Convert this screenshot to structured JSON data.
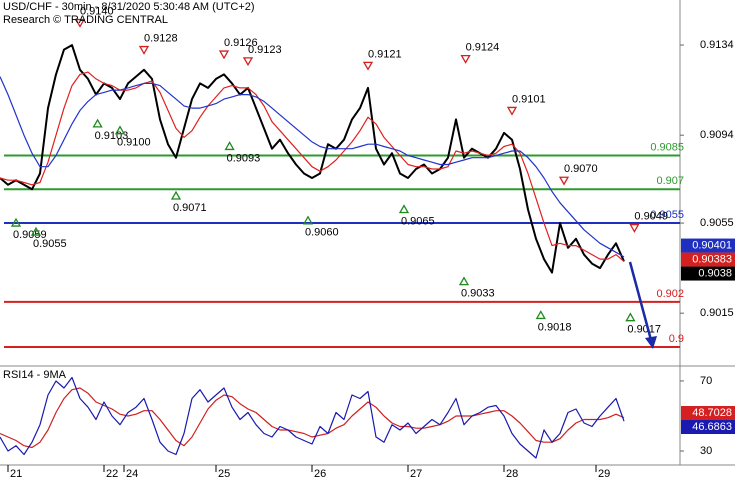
{
  "chart_data": [
    {
      "type": "line",
      "title": "USD/CHF - 30min - 8/31/2020 5:30:48 AM (UTC+2)",
      "subtitle": "Research © TRADING CENTRAL",
      "xlim": [
        0,
        85
      ],
      "ylim": [
        0.8992,
        0.9154
      ],
      "yticks": [
        0.9134,
        0.9094,
        0.9055,
        0.9015
      ],
      "series": [
        {
          "color": "#000000",
          "values": [
            0.9075,
            0.9072,
            0.9074,
            0.9072,
            0.907,
            0.9077,
            0.9106,
            0.9121,
            0.9132,
            0.9134,
            0.9123,
            0.9119,
            0.9112,
            0.9117,
            0.9115,
            0.911,
            0.9117,
            0.912,
            0.9123,
            0.9119,
            0.9101,
            0.909,
            0.9084,
            0.9097,
            0.911,
            0.9117,
            0.9115,
            0.9119,
            0.9121,
            0.9117,
            0.9112,
            0.9115,
            0.9106,
            0.9097,
            0.9088,
            0.9092,
            0.9086,
            0.9081,
            0.9077,
            0.9075,
            0.9077,
            0.909,
            0.9088,
            0.9092,
            0.9101,
            0.9106,
            0.9115,
            0.9088,
            0.9081,
            0.9086,
            0.9077,
            0.9075,
            0.9079,
            0.9081,
            0.9077,
            0.9079,
            0.9084,
            0.9101,
            0.9084,
            0.9088,
            0.9086,
            0.9084,
            0.9088,
            0.9095,
            0.9092,
            0.9079,
            0.9061,
            0.9048,
            0.9039,
            0.9033,
            0.9055,
            0.9044,
            0.9048,
            0.9041,
            0.9037,
            0.9035,
            0.9041,
            0.9046,
            0.9038
          ]
        },
        {
          "color": "#e02020",
          "values": [
            0.9075,
            0.9074,
            0.9074,
            0.9073,
            0.9072,
            0.9073,
            0.9082,
            0.9094,
            0.9106,
            0.9116,
            0.9121,
            0.9122,
            0.9119,
            0.9117,
            0.9116,
            0.9114,
            0.9114,
            0.9115,
            0.9117,
            0.9118,
            0.9113,
            0.9105,
            0.9097,
            0.9093,
            0.9096,
            0.9102,
            0.9107,
            0.9111,
            0.9115,
            0.9116,
            0.9115,
            0.9115,
            0.9112,
            0.9107,
            0.91,
            0.9096,
            0.9092,
            0.9088,
            0.9084,
            0.908,
            0.9078,
            0.908,
            0.9083,
            0.9087,
            0.9091,
            0.9096,
            0.9102,
            0.9099,
            0.9093,
            0.9089,
            0.9085,
            0.9081,
            0.908,
            0.908,
            0.9079,
            0.9079,
            0.908,
            0.9087,
            0.9086,
            0.9087,
            0.9086,
            0.9085,
            0.9086,
            0.9089,
            0.909,
            0.9086,
            0.9077,
            0.9066,
            0.9055,
            0.9045,
            0.9046,
            0.9045,
            0.9045,
            0.9043,
            0.9041,
            0.9039,
            0.9039,
            0.9041,
            0.9038
          ]
        },
        {
          "color": "#2233cc",
          "values": [
            0.912,
            0.9112,
            0.9103,
            0.9094,
            0.9086,
            0.908,
            0.908,
            0.9085,
            0.9092,
            0.9099,
            0.9105,
            0.9109,
            0.9112,
            0.9113,
            0.9114,
            0.9114,
            0.9115,
            0.9116,
            0.9117,
            0.9117,
            0.9116,
            0.9113,
            0.911,
            0.9107,
            0.9106,
            0.9106,
            0.9107,
            0.9108,
            0.911,
            0.9111,
            0.9112,
            0.9112,
            0.9111,
            0.9109,
            0.9106,
            0.9103,
            0.91,
            0.9097,
            0.9094,
            0.9091,
            0.9089,
            0.9088,
            0.9088,
            0.9088,
            0.9088,
            0.9089,
            0.909,
            0.909,
            0.9089,
            0.9088,
            0.9087,
            0.9085,
            0.9084,
            0.9083,
            0.9082,
            0.9081,
            0.9081,
            0.9082,
            0.9083,
            0.9084,
            0.9084,
            0.9084,
            0.9085,
            0.9086,
            0.9087,
            0.9087,
            0.9084,
            0.908,
            0.9075,
            0.9069,
            0.9064,
            0.906,
            0.9056,
            0.9052,
            0.9049,
            0.9046,
            0.9044,
            0.9042,
            0.904
          ]
        }
      ],
      "levels": [
        {
          "value": 0.9085,
          "color": "#2e9a2e"
        },
        {
          "value": 0.907,
          "color": "#2e9a2e"
        },
        {
          "value": 0.9055,
          "color": "#1f2fbf"
        },
        {
          "value": 0.902,
          "color": "#d42020"
        },
        {
          "value": 0.9,
          "color": "#d42020"
        }
      ],
      "price_labels": [
        {
          "value": 0.90401,
          "color": "#1f2fbf"
        },
        {
          "value": 0.90383,
          "color": "#d42020"
        },
        {
          "value": 0.9038,
          "color": "#000000"
        }
      ],
      "annotations": [
        {
          "value": 0.914,
          "label": "0.9140",
          "x": 10,
          "kind": "high"
        },
        {
          "value": 0.9128,
          "label": "0.9128",
          "x": 18,
          "kind": "high"
        },
        {
          "value": 0.9126,
          "label": "0.9126",
          "x": 28,
          "kind": "high"
        },
        {
          "value": 0.9123,
          "label": "0.9123",
          "x": 31,
          "kind": "high"
        },
        {
          "value": 0.9121,
          "label": "0.9121",
          "x": 46,
          "kind": "high"
        },
        {
          "value": 0.9124,
          "label": "0.9124",
          "x": 58.2,
          "kind": "high"
        },
        {
          "value": 0.9101,
          "label": "0.9101",
          "x": 64,
          "kind": "high"
        },
        {
          "value": 0.907,
          "label": "0.9070",
          "x": 70.5,
          "kind": "high"
        },
        {
          "value": 0.9049,
          "label": "0.9049",
          "x": 79.3,
          "kind": "high"
        },
        {
          "value": 0.9059,
          "label": "0.9059",
          "x": 2,
          "kind": "low"
        },
        {
          "value": 0.9055,
          "label": "0.9055",
          "x": 4.5,
          "kind": "low"
        },
        {
          "value": 0.9103,
          "label": "0.9103",
          "x": 12.2,
          "kind": "low"
        },
        {
          "value": 0.91,
          "label": "0.9100",
          "x": 15,
          "kind": "low"
        },
        {
          "value": 0.9093,
          "label": "0.9093",
          "x": 28.7,
          "kind": "low"
        },
        {
          "value": 0.9071,
          "label": "0.9071",
          "x": 22,
          "kind": "low"
        },
        {
          "value": 0.906,
          "label": "0.9060",
          "x": 38.5,
          "kind": "low"
        },
        {
          "value": 0.9065,
          "label": "0.9065",
          "x": 50.5,
          "kind": "low"
        },
        {
          "value": 0.9033,
          "label": "0.9033",
          "x": 58,
          "kind": "low"
        },
        {
          "value": 0.9018,
          "label": "0.9018",
          "x": 67.6,
          "kind": "low"
        },
        {
          "value": 0.9017,
          "label": "0.9017",
          "x": 78.8,
          "kind": "low"
        }
      ]
    },
    {
      "type": "line",
      "title": "RSI14 - 9MA",
      "xlim": [
        0,
        85
      ],
      "xticks": [
        {
          "value": 1,
          "label": "21"
        },
        {
          "value": 13,
          "label": "22"
        },
        {
          "value": 15.5,
          "label": "24"
        },
        {
          "value": 27,
          "label": "25"
        },
        {
          "value": 39,
          "label": "26"
        },
        {
          "value": 51,
          "label": "27"
        },
        {
          "value": 63,
          "label": "28"
        },
        {
          "value": 74.5,
          "label": "29"
        }
      ],
      "ylim": [
        22,
        77.4
      ],
      "yticks": [
        70,
        30
      ],
      "series": [
        {
          "color": "#d02020",
          "values": [
            40,
            38,
            36,
            33,
            32,
            35,
            42,
            52,
            60,
            65,
            66,
            63,
            58,
            56,
            54,
            51,
            50,
            51,
            53,
            53,
            48,
            42,
            36,
            33,
            38,
            46,
            54,
            59,
            62,
            61,
            57,
            54,
            52,
            48,
            44,
            42,
            42,
            41,
            40,
            38,
            39,
            40,
            43,
            45,
            50,
            54,
            58,
            55,
            50,
            46,
            44,
            44,
            43,
            43,
            44,
            45,
            47,
            50,
            50,
            50,
            51,
            52,
            53,
            53,
            50,
            46,
            41,
            36,
            35,
            35,
            37,
            42,
            46,
            48,
            48,
            48,
            49,
            51,
            49
          ]
        },
        {
          "color": "#1a1ab0",
          "values": [
            38,
            30,
            33,
            28,
            35,
            45,
            62,
            70,
            66,
            72,
            60,
            55,
            48,
            58,
            50,
            45,
            52,
            55,
            60,
            48,
            35,
            30,
            28,
            40,
            60,
            65,
            58,
            62,
            66,
            55,
            48,
            52,
            45,
            40,
            38,
            44,
            42,
            38,
            36,
            34,
            44,
            40,
            52,
            48,
            62,
            60,
            64,
            38,
            35,
            45,
            42,
            46,
            40,
            44,
            48,
            45,
            52,
            60,
            45,
            50,
            52,
            55,
            56,
            50,
            40,
            34,
            30,
            26,
            42,
            35,
            40,
            52,
            54,
            46,
            44,
            50,
            55,
            60,
            47
          ]
        }
      ],
      "value_boxes": [
        {
          "value": 48.7028,
          "color": "#d42020"
        },
        {
          "value": 46.6863,
          "color": "#1a1ab0"
        }
      ]
    }
  ]
}
